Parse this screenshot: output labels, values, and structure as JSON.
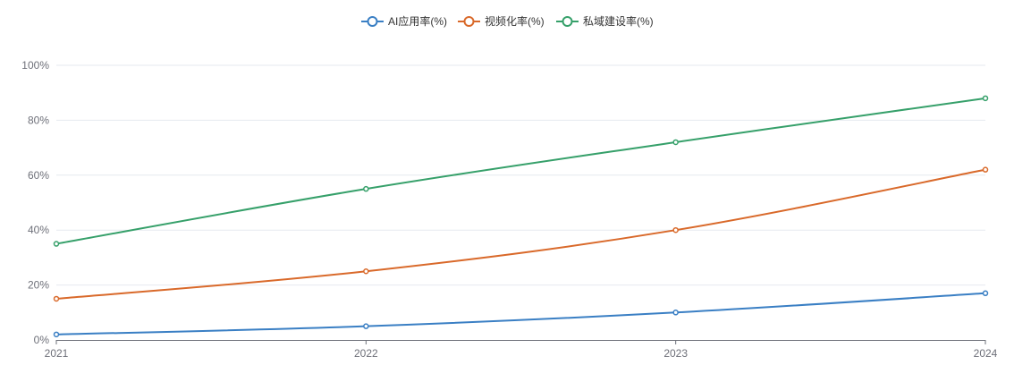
{
  "chart_data": {
    "type": "line",
    "title": "",
    "xlabel": "",
    "ylabel": "",
    "categories": [
      "2021",
      "2022",
      "2023",
      "2024"
    ],
    "ylim": [
      0,
      100
    ],
    "yticks": [
      "0%",
      "20%",
      "40%",
      "60%",
      "80%",
      "100%"
    ],
    "ytick_values": [
      0,
      20,
      40,
      60,
      80,
      100
    ],
    "grid": true,
    "legend_position": "top-center",
    "smooth": true,
    "series": [
      {
        "name": "AI应用率(%)",
        "color": "#3a7fc4",
        "values": [
          2,
          5,
          10,
          17
        ]
      },
      {
        "name": "视频化率(%)",
        "color": "#d9692a",
        "values": [
          15,
          25,
          40,
          62
        ]
      },
      {
        "name": "私域建设率(%)",
        "color": "#36a06a",
        "values": [
          35,
          55,
          72,
          88
        ]
      }
    ]
  }
}
